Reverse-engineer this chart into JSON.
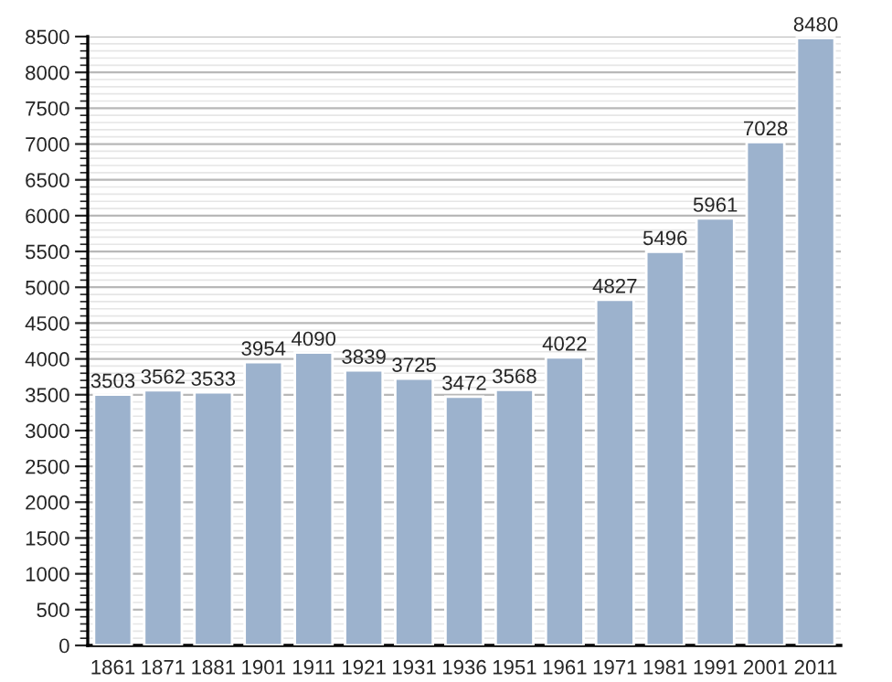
{
  "chart_data": {
    "type": "bar",
    "categories": [
      "1861",
      "1871",
      "1881",
      "1901",
      "1911",
      "1921",
      "1931",
      "1936",
      "1951",
      "1961",
      "1971",
      "1981",
      "1991",
      "2001",
      "2011"
    ],
    "values": [
      3503,
      3562,
      3533,
      3954,
      4090,
      3839,
      3725,
      3472,
      3568,
      4022,
      4827,
      5496,
      5961,
      7028,
      8480
    ],
    "color": "#9cb2cd",
    "ylim": [
      0,
      8500
    ],
    "yticks": [
      0,
      500,
      1000,
      1500,
      2000,
      2500,
      3000,
      3500,
      4000,
      4500,
      5000,
      5500,
      6000,
      6500,
      7000,
      7500,
      8000,
      8500
    ],
    "grid": "y",
    "data_labels": true
  }
}
